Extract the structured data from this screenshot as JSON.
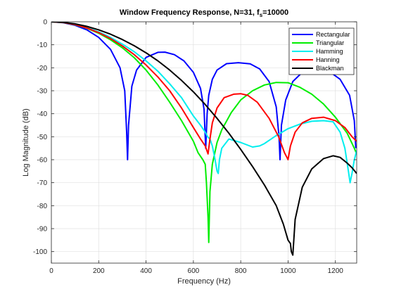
{
  "chart_data": {
    "type": "line",
    "title": "Window Frequency Response, N=31, f",
    "title_sub": "s",
    "title_suffix": "=10000",
    "xlabel": "Frequency (Hz)",
    "ylabel": "Log Magnitude (dB)",
    "xlim": [
      0,
      1290
    ],
    "ylim": [
      -105,
      0
    ],
    "xticks": [
      0,
      200,
      400,
      600,
      800,
      1000,
      1200
    ],
    "yticks": [
      0,
      -10,
      -20,
      -30,
      -40,
      -50,
      -60,
      -70,
      -80,
      -90,
      -100
    ],
    "grid": true,
    "legend_position": "top-right",
    "series": [
      {
        "name": "Rectangular",
        "color": "#0000ff",
        "x": [
          0,
          50,
          100,
          150,
          200,
          250,
          290,
          310,
          318,
          322,
          326,
          340,
          360,
          400,
          450,
          480,
          520,
          560,
          600,
          630,
          645,
          652,
          658,
          665,
          680,
          700,
          740,
          790,
          840,
          880,
          920,
          950,
          962,
          966,
          972,
          990,
          1020,
          1060,
          1120,
          1170,
          1220,
          1260,
          1280,
          1286
        ],
        "y": [
          0,
          -0.4,
          -1.5,
          -3.5,
          -6.8,
          -12,
          -20,
          -30,
          -48,
          -60,
          -45,
          -28,
          -21,
          -15.5,
          -13.3,
          -13.2,
          -14.3,
          -17,
          -22,
          -29,
          -38,
          -55,
          -40,
          -32,
          -25,
          -21,
          -18.2,
          -17.8,
          -18.3,
          -20.5,
          -26,
          -37,
          -50,
          -60,
          -45,
          -34,
          -26,
          -22,
          -20.5,
          -21.3,
          -25,
          -32,
          -43,
          -55
        ]
      },
      {
        "name": "Triangular",
        "color": "#00ee00",
        "x": [
          0,
          50,
          100,
          150,
          200,
          250,
          300,
          350,
          400,
          450,
          500,
          550,
          600,
          620,
          640,
          650,
          655,
          662,
          665,
          670,
          680,
          700,
          720,
          760,
          800,
          850,
          900,
          950,
          1000,
          1050,
          1100,
          1150,
          1200,
          1250,
          1280,
          1288
        ],
        "y": [
          0,
          -0.3,
          -1.3,
          -2.8,
          -5,
          -7.8,
          -11.3,
          -15.6,
          -21,
          -27.5,
          -35,
          -43,
          -52,
          -57,
          -60,
          -62,
          -70,
          -85,
          -96,
          -74,
          -62,
          -52.5,
          -47,
          -39.5,
          -34,
          -30,
          -27.5,
          -26.4,
          -26.5,
          -28.5,
          -31.5,
          -35.8,
          -41.5,
          -48.5,
          -55,
          -57
        ]
      },
      {
        "name": "Hamming",
        "color": "#00eeee",
        "x": [
          0,
          50,
          100,
          150,
          200,
          250,
          300,
          350,
          400,
          450,
          500,
          550,
          600,
          630,
          650,
          660,
          670,
          680,
          690,
          700,
          705,
          710,
          720,
          750,
          800,
          850,
          880,
          900,
          950,
          1000,
          1050,
          1100,
          1150,
          1190,
          1220,
          1240,
          1255,
          1262,
          1270,
          1280,
          1290
        ],
        "y": [
          0,
          -0.3,
          -1.1,
          -2.5,
          -4.4,
          -6.8,
          -9.7,
          -13,
          -17,
          -21.5,
          -27,
          -33,
          -41,
          -45,
          -48,
          -50,
          -51,
          -54,
          -59,
          -65,
          -66,
          -60,
          -55,
          -51,
          -52.5,
          -54.5,
          -54,
          -53,
          -49.5,
          -46.5,
          -44.5,
          -43.3,
          -43,
          -43.5,
          -48,
          -55,
          -65,
          -70,
          -66,
          -60,
          -56
        ]
      },
      {
        "name": "Hanning",
        "color": "#ff0000",
        "x": [
          0,
          50,
          100,
          150,
          200,
          250,
          300,
          350,
          400,
          450,
          500,
          550,
          600,
          630,
          650,
          662,
          670,
          680,
          700,
          730,
          770,
          800,
          830,
          870,
          920,
          960,
          985,
          995,
          1000,
          1010,
          1030,
          1060,
          1100,
          1150,
          1200,
          1240,
          1270,
          1290
        ],
        "y": [
          0,
          -0.3,
          -1.2,
          -2.7,
          -4.7,
          -7.3,
          -10.5,
          -14.3,
          -18.8,
          -24,
          -30,
          -37.5,
          -46,
          -51,
          -54,
          -57.5,
          -51,
          -44,
          -37.5,
          -33,
          -31.5,
          -31.3,
          -32,
          -35,
          -42,
          -50,
          -57,
          -59,
          -60,
          -54,
          -48,
          -44,
          -42,
          -41.5,
          -43,
          -46,
          -50,
          -52
        ]
      },
      {
        "name": "Blackman",
        "color": "#000000",
        "x": [
          0,
          50,
          100,
          150,
          200,
          250,
          300,
          350,
          400,
          450,
          500,
          550,
          600,
          650,
          700,
          750,
          800,
          850,
          900,
          950,
          980,
          1000,
          1010,
          1014,
          1020,
          1030,
          1060,
          1100,
          1150,
          1190,
          1220,
          1250,
          1270,
          1290
        ],
        "y": [
          0,
          -0.2,
          -0.9,
          -2,
          -3.5,
          -5.4,
          -7.7,
          -10.4,
          -13.5,
          -17,
          -21,
          -25.5,
          -30.5,
          -36,
          -42,
          -48.5,
          -55.5,
          -63,
          -71,
          -80,
          -88,
          -95,
          -96.5,
          -100,
          -101.5,
          -86,
          -72,
          -64,
          -59.5,
          -58.3,
          -59,
          -61.5,
          -63.5,
          -66
        ]
      }
    ]
  }
}
